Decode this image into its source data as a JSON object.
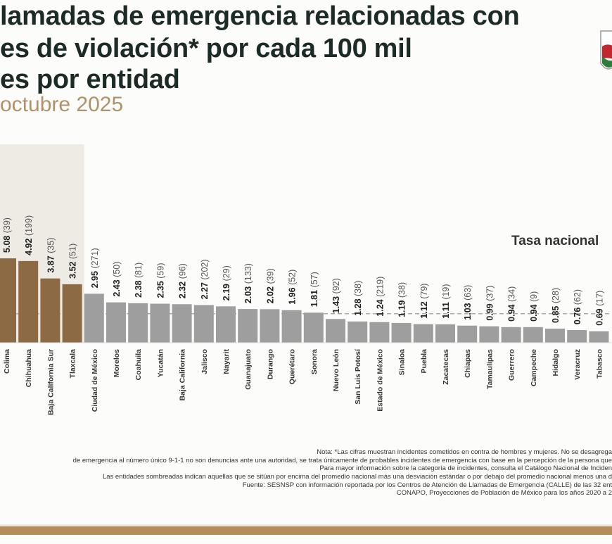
{
  "header": {
    "title_lines": [
      "lamadas de emergencia relacionadas con",
      "es de violación* por cada 100 mil",
      "es por entidad"
    ],
    "subtitle": "octubre 2025"
  },
  "chart_data": {
    "type": "bar",
    "categories": [
      "Colima",
      "Chihuahua",
      "Baja California Sur",
      "Tlaxcala",
      "Ciudad de México",
      "Morelos",
      "Coahuila",
      "Yucatán",
      "Baja California",
      "Jalisco",
      "Nayarit",
      "Guanajuato",
      "Durango",
      "Querétaro",
      "Sonora",
      "Nuevo León",
      "San Luis Potosí",
      "Estado de México",
      "Sinaloa",
      "Puebla",
      "Zacatecas",
      "Chiapas",
      "Tamaulipas",
      "Guerrero",
      "Campeche",
      "Hidalgo",
      "Veracruz",
      "Tabasco"
    ],
    "values": [
      5.08,
      4.92,
      3.87,
      3.52,
      2.95,
      2.43,
      2.38,
      2.35,
      2.32,
      2.27,
      2.19,
      2.03,
      2.02,
      1.96,
      1.81,
      1.43,
      1.28,
      1.24,
      1.19,
      1.12,
      1.11,
      1.03,
      0.99,
      0.94,
      0.94,
      0.85,
      0.76,
      0.69
    ],
    "counts": [
      "(39)",
      "(199)",
      "(35)",
      "(51)",
      "(271)",
      "(50)",
      "(81)",
      "(59)",
      "(96)",
      "(202)",
      "(29)",
      "(133)",
      "(39)",
      "(52)",
      "(57)",
      "(92)",
      "(38)",
      "(219)",
      "(38)",
      "(79)",
      "(19)",
      "(63)",
      "(37)",
      "(34)",
      "(9)",
      "(28)",
      "(62)",
      "(17)"
    ],
    "highlighted": [
      true,
      true,
      true,
      true,
      false,
      false,
      false,
      false,
      false,
      false,
      false,
      false,
      false,
      false,
      false,
      false,
      false,
      false,
      false,
      false,
      false,
      false,
      false,
      false,
      false,
      false,
      false,
      false
    ],
    "reference_line": {
      "label": "Tasa nacional",
      "value": 1.75
    },
    "colors": {
      "highlight": "#8c6a43",
      "normal": "#9e9e9e",
      "shade": "#eeeae4",
      "reference": "#aaaaaa"
    },
    "ylim": [
      0,
      5.5
    ]
  },
  "notes": [
    "Nota: *Las cifras muestran incidentes cometidos en contra de hombres y mujeres. No se desagrega",
    "de emergencia al número único 9-1-1 no son denuncias ante una autoridad, se trata únicamente de probables incidentes de emergencia con base en la percepción de la persona que",
    "Para mayor información sobre la categoría de incidentes, consulta el Catálogo Nacional de Inciden",
    "Las entidades sombreadas indican aquellas que se sitúan por encima del promedio nacional más una desviación estándar o por debajo del promedio nacional menos una d",
    "Fuente: SESNSP con información reportada por los Centros de Atención de Llamadas de Emergencia (CALLE) de las 32 ent",
    "CONAPO, Proyecciones de Población de México para los años 2020 a 2"
  ]
}
